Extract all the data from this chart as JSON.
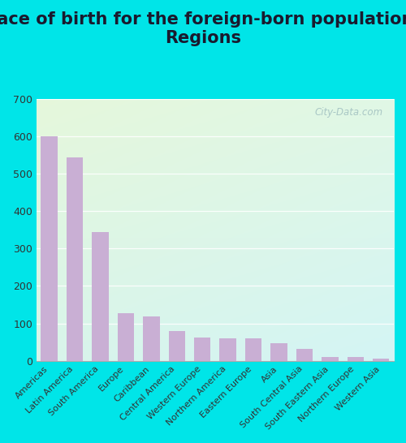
{
  "title": "Place of birth for the foreign-born population -\nRegions",
  "categories": [
    "Americas",
    "Latin America",
    "South America",
    "Europe",
    "Caribbean",
    "Central America",
    "Western Europe",
    "Northern America",
    "Eastern Europe",
    "Asia",
    "South Central Asia",
    "South Eastern Asia",
    "Northern Europe",
    "Western Asia"
  ],
  "values": [
    601,
    543,
    344,
    128,
    119,
    80,
    62,
    61,
    60,
    48,
    32,
    10,
    9,
    6
  ],
  "bar_color": "#c9afd4",
  "bg_outer": "#00e5e8",
  "ylim": [
    0,
    700
  ],
  "yticks": [
    0,
    100,
    200,
    300,
    400,
    500,
    600,
    700
  ],
  "title_fontsize": 15,
  "title_color": "#1a1a2e",
  "watermark": "City-Data.com",
  "watermark_color": "#a0bfc0",
  "tick_label_fontsize": 8,
  "ytick_fontsize": 9
}
